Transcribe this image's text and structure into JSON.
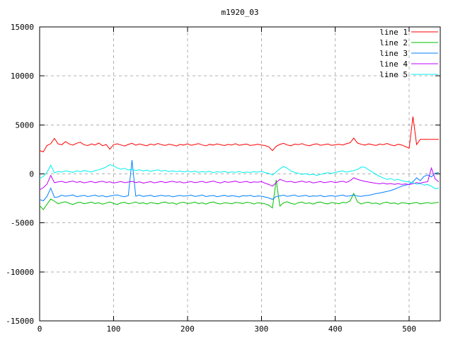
{
  "title": "m1920_03",
  "chart_data": {
    "type": "line",
    "title": "m1920_03",
    "xlabel": "",
    "ylabel": "",
    "xlim": [
      0,
      542
    ],
    "ylim": [
      -15000,
      15000
    ],
    "x_ticks": [
      0,
      100,
      200,
      300,
      400,
      500
    ],
    "y_ticks": [
      -15000,
      -10000,
      -5000,
      0,
      5000,
      10000,
      15000
    ],
    "grid": true,
    "legend_position": "top-right",
    "colors": {
      "background": "#ffffff",
      "axis": "#000000",
      "grid": "#b0b0b0",
      "text": "#000000"
    },
    "x_start": 0,
    "x_step": 5,
    "series": [
      {
        "name": "line 1",
        "color": "#ff0000",
        "values": [
          2380,
          2250,
          2900,
          3080,
          3620,
          3060,
          2980,
          3290,
          3060,
          2940,
          3120,
          3230,
          2980,
          2890,
          3060,
          2950,
          3150,
          2880,
          2990,
          2520,
          2980,
          3070,
          2950,
          2840,
          3010,
          3120,
          2930,
          3050,
          2960,
          2870,
          3040,
          2950,
          3110,
          2980,
          2900,
          3030,
          2960,
          2850,
          3010,
          2940,
          3070,
          2920,
          3000,
          3090,
          2950,
          2860,
          3020,
          2940,
          3060,
          2970,
          2890,
          3010,
          2950,
          3080,
          2920,
          2990,
          3040,
          2900,
          2960,
          3030,
          2950,
          2890,
          2760,
          2380,
          2820,
          3010,
          3120,
          2950,
          2870,
          3040,
          2980,
          3090,
          2940,
          2860,
          3000,
          3070,
          2920,
          2980,
          3050,
          2910,
          2970,
          3030,
          2950,
          3080,
          3180,
          3650,
          3150,
          3020,
          2940,
          3060,
          2980,
          2900,
          3040,
          2970,
          3110,
          2960,
          2880,
          3020,
          2950,
          2780,
          2620,
          5850,
          3000,
          3530,
          3530,
          3530,
          3530,
          3530,
          3530
        ]
      },
      {
        "name": "line 2",
        "color": "#00c000",
        "values": [
          -3230,
          -3640,
          -3100,
          -2560,
          -2780,
          -3050,
          -2920,
          -2850,
          -3010,
          -3120,
          -2960,
          -2890,
          -3040,
          -2970,
          -2880,
          -3020,
          -2950,
          -3090,
          -2980,
          -2870,
          -3010,
          -3120,
          -2960,
          -2900,
          -3050,
          -2980,
          -2860,
          -3020,
          -2950,
          -3080,
          -2920,
          -2990,
          -3060,
          -2930,
          -2870,
          -3010,
          -2960,
          -3100,
          -2950,
          -2890,
          -3030,
          -2970,
          -2880,
          -3040,
          -2950,
          -3090,
          -2930,
          -2860,
          -3000,
          -3070,
          -2940,
          -2980,
          -3050,
          -2910,
          -2960,
          -3020,
          -2890,
          -2950,
          -3080,
          -2940,
          -2990,
          -3060,
          -3190,
          -3480,
          -620,
          -3280,
          -2950,
          -2840,
          -3010,
          -3100,
          -2940,
          -2880,
          -3030,
          -2960,
          -3090,
          -2930,
          -2870,
          -3000,
          -3060,
          -2920,
          -2980,
          -3040,
          -2900,
          -2960,
          -2760,
          -2000,
          -2850,
          -3080,
          -2940,
          -2890,
          -3030,
          -2970,
          -3100,
          -2950,
          -2880,
          -3020,
          -2960,
          -3090,
          -2930,
          -2980,
          -3050,
          -2980,
          -2910,
          -3060,
          -2990,
          -2930,
          -3010,
          -2950,
          -2900
        ]
      },
      {
        "name": "line 3",
        "color": "#0080ff",
        "values": [
          -2620,
          -2750,
          -2300,
          -1450,
          -2400,
          -2350,
          -2180,
          -2280,
          -2220,
          -2150,
          -2320,
          -2260,
          -2190,
          -2310,
          -2240,
          -2170,
          -2290,
          -2230,
          -2350,
          -2270,
          -2200,
          -2140,
          -2260,
          -2330,
          -2210,
          1400,
          -2280,
          -2160,
          -2300,
          -2240,
          -2180,
          -2320,
          -2250,
          -2190,
          -2270,
          -2220,
          -2340,
          -2260,
          -2200,
          -2280,
          -2230,
          -2170,
          -2290,
          -2240,
          -2160,
          -2310,
          -2250,
          -2200,
          -2330,
          -2260,
          -2180,
          -2300,
          -2230,
          -2270,
          -2350,
          -2210,
          -2260,
          -2190,
          -2320,
          -2250,
          -2280,
          -2360,
          -2450,
          -2600,
          -2300,
          -2250,
          -2170,
          -2290,
          -2230,
          -2160,
          -2300,
          -2250,
          -2190,
          -2310,
          -2240,
          -2280,
          -2200,
          -2330,
          -2260,
          -2220,
          -2290,
          -2230,
          -2170,
          -2280,
          -2240,
          -2150,
          -2260,
          -2300,
          -2220,
          -2180,
          -2100,
          -2020,
          -1950,
          -1870,
          -1790,
          -1700,
          -1560,
          -1400,
          -1250,
          -1150,
          -1050,
          -800,
          -400,
          -700,
          -250,
          -100,
          -300,
          80,
          150
        ]
      },
      {
        "name": "line 4",
        "color": "#c000ff",
        "values": [
          -1620,
          -1400,
          -1050,
          -150,
          -900,
          -820,
          -760,
          -880,
          -800,
          -730,
          -860,
          -790,
          -910,
          -840,
          -770,
          -890,
          -820,
          -750,
          -870,
          -800,
          -930,
          -860,
          -780,
          -900,
          -830,
          -760,
          -880,
          -810,
          -940,
          -870,
          -790,
          -910,
          -840,
          -770,
          -890,
          -820,
          -750,
          -860,
          -800,
          -920,
          -850,
          -780,
          -900,
          -830,
          -760,
          -880,
          -810,
          -730,
          -850,
          -920,
          -790,
          -860,
          -800,
          -740,
          -870,
          -830,
          -760,
          -890,
          -820,
          -850,
          -780,
          -950,
          -1080,
          -1250,
          -900,
          -550,
          -700,
          -820,
          -760,
          -880,
          -810,
          -740,
          -860,
          -790,
          -920,
          -850,
          -780,
          -900,
          -830,
          -770,
          -890,
          -820,
          -750,
          -870,
          -700,
          -400,
          -550,
          -680,
          -760,
          -830,
          -900,
          -960,
          -1010,
          -940,
          -1040,
          -980,
          -1060,
          -1000,
          -1080,
          -1020,
          -1090,
          -1000,
          -900,
          -950,
          -850,
          -800,
          600,
          -500,
          -820
        ]
      },
      {
        "name": "line 5",
        "color": "#00eeee",
        "values": [
          -480,
          -250,
          150,
          880,
          100,
          250,
          180,
          320,
          240,
          160,
          300,
          220,
          350,
          270,
          190,
          330,
          420,
          550,
          700,
          950,
          820,
          600,
          480,
          560,
          400,
          470,
          350,
          420,
          300,
          380,
          260,
          340,
          410,
          290,
          360,
          240,
          310,
          230,
          290,
          210,
          270,
          200,
          280,
          160,
          240,
          180,
          260,
          140,
          220,
          170,
          250,
          130,
          210,
          160,
          230,
          120,
          190,
          150,
          220,
          180,
          260,
          140,
          60,
          -120,
          200,
          520,
          760,
          580,
          300,
          150,
          60,
          -50,
          20,
          -100,
          -30,
          -150,
          -60,
          40,
          120,
          60,
          150,
          220,
          300,
          180,
          260,
          350,
          450,
          700,
          680,
          420,
          200,
          -50,
          -250,
          -420,
          -560,
          -480,
          -640,
          -560,
          -700,
          -780,
          -820,
          -900,
          -1050,
          -980,
          -1150,
          -1080,
          -1250,
          -1500,
          -1450
        ]
      }
    ],
    "legend_entries": [
      "line 1",
      "line 2",
      "line 3",
      "line 4",
      "line 5"
    ]
  }
}
